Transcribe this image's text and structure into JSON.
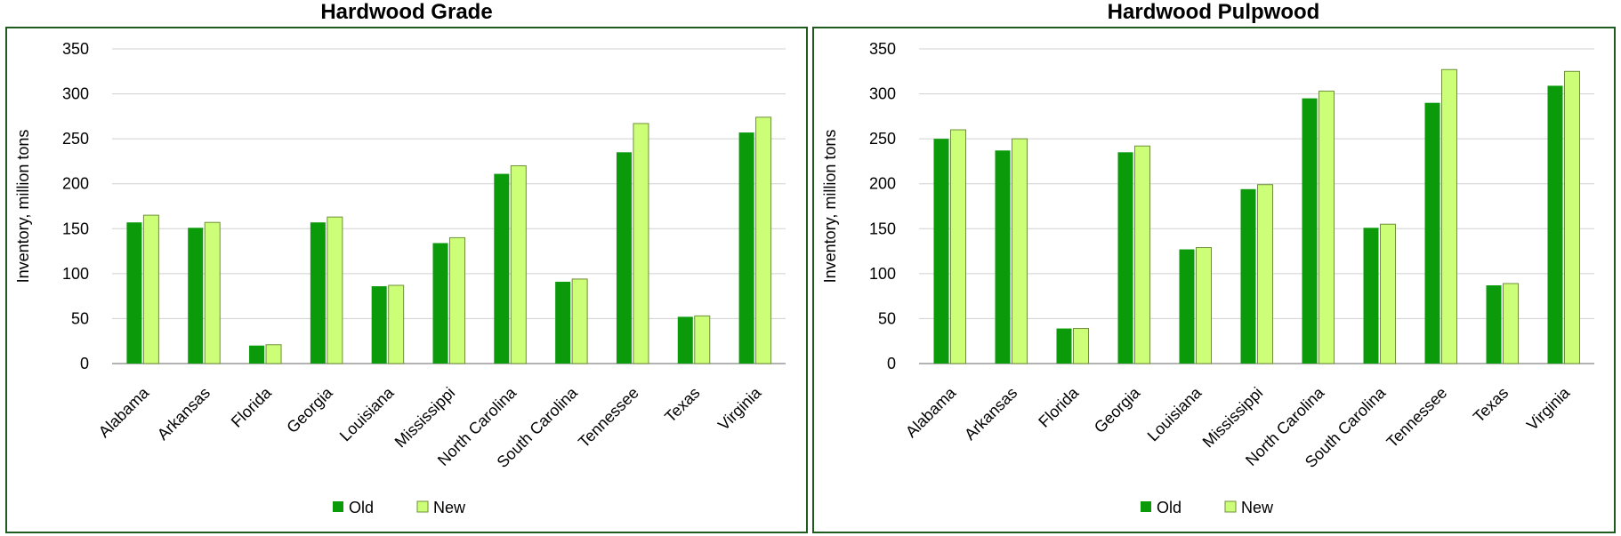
{
  "chart_data": [
    {
      "type": "bar",
      "title": "Hardwood Grade",
      "ylabel": "Inventory, million tons",
      "xlabel": "",
      "ylim": [
        0,
        350
      ],
      "yticks": [
        0,
        50,
        100,
        150,
        200,
        250,
        300,
        350
      ],
      "grid": true,
      "legend_position": "bottom",
      "categories": [
        "Alabama",
        "Arkansas",
        "Florida",
        "Georgia",
        "Louisiana",
        "Mississippi",
        "North Carolina",
        "South Carolina",
        "Tennessee",
        "Texas",
        "Virginia"
      ],
      "series": [
        {
          "name": "Old",
          "color": "#0a9a0a",
          "values": [
            157,
            151,
            20,
            157,
            86,
            134,
            211,
            91,
            235,
            52,
            257
          ]
        },
        {
          "name": "New",
          "color": "#ccff77",
          "values": [
            165,
            157,
            21,
            163,
            87,
            140,
            220,
            94,
            267,
            53,
            274
          ]
        }
      ]
    },
    {
      "type": "bar",
      "title": "Hardwood Pulpwood",
      "ylabel": "Inventory, million tons",
      "xlabel": "",
      "ylim": [
        0,
        350
      ],
      "yticks": [
        0,
        50,
        100,
        150,
        200,
        250,
        300,
        350
      ],
      "grid": true,
      "legend_position": "bottom",
      "categories": [
        "Alabama",
        "Arkansas",
        "Florida",
        "Georgia",
        "Louisiana",
        "Mississippi",
        "North Carolina",
        "South Carolina",
        "Tennessee",
        "Texas",
        "Virginia"
      ],
      "series": [
        {
          "name": "Old",
          "color": "#0a9a0a",
          "values": [
            250,
            237,
            39,
            235,
            127,
            194,
            295,
            151,
            290,
            87,
            309
          ]
        },
        {
          "name": "New",
          "color": "#ccff77",
          "values": [
            260,
            250,
            39,
            242,
            129,
            199,
            303,
            155,
            327,
            89,
            325
          ]
        }
      ]
    }
  ]
}
